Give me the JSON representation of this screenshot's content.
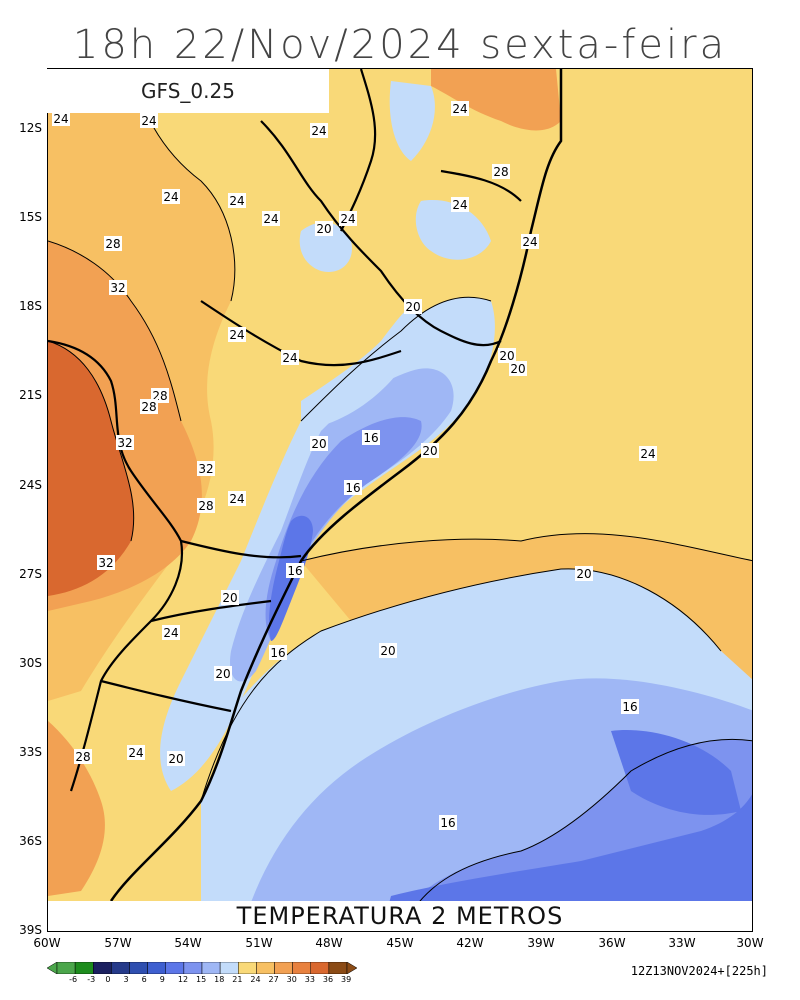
{
  "title": "18h 22/Nov/2024 sexta-feira",
  "model": "GFS_0.25",
  "caption": "TEMPERATURA 2 METROS",
  "run_info": "12Z13NOV2024+[225h]",
  "lat_labels": [
    "12S",
    "15S",
    "18S",
    "21S",
    "24S",
    "27S",
    "30S",
    "33S",
    "36S",
    "39S"
  ],
  "lon_labels": [
    "60W",
    "57W",
    "54W",
    "51W",
    "48W",
    "45W",
    "42W",
    "39W",
    "36W",
    "33W",
    "30W"
  ],
  "legend": {
    "values": [
      "-6",
      "-3",
      "0",
      "3",
      "6",
      "9",
      "12",
      "15",
      "18",
      "21",
      "24",
      "27",
      "30",
      "33",
      "36",
      "39"
    ],
    "colors": [
      "#4ba64b",
      "#1d8c1d",
      "#1b2060",
      "#253a8a",
      "#2f4fb0",
      "#3e5fd0",
      "#5c76e8",
      "#7d93ef",
      "#9fb7f5",
      "#c3dcfa",
      "#f9d978",
      "#f7c063",
      "#f2a153",
      "#e8813f",
      "#d9682f",
      "#8b4b16"
    ]
  },
  "contour_labels": [
    {
      "text": "24"
    },
    {
      "text": "24"
    },
    {
      "text": "24"
    },
    {
      "text": "24"
    },
    {
      "text": "24"
    },
    {
      "text": "24"
    },
    {
      "text": "28"
    },
    {
      "text": "24"
    },
    {
      "text": "24"
    },
    {
      "text": "28"
    },
    {
      "text": "32"
    },
    {
      "text": "24"
    },
    {
      "text": "20"
    },
    {
      "text": "24"
    },
    {
      "text": "20"
    },
    {
      "text": "24"
    },
    {
      "text": "24"
    },
    {
      "text": "20"
    },
    {
      "text": "28"
    },
    {
      "text": "28"
    },
    {
      "text": "32"
    },
    {
      "text": "20"
    },
    {
      "text": "16"
    },
    {
      "text": "20"
    },
    {
      "text": "24"
    },
    {
      "text": "32"
    },
    {
      "text": "16"
    },
    {
      "text": "28"
    },
    {
      "text": "24"
    },
    {
      "text": "32"
    },
    {
      "text": "16"
    },
    {
      "text": "20"
    },
    {
      "text": "20"
    },
    {
      "text": "24"
    },
    {
      "text": "16"
    },
    {
      "text": "20"
    },
    {
      "text": "20"
    },
    {
      "text": "20"
    },
    {
      "text": "16"
    },
    {
      "text": "28"
    },
    {
      "text": "24"
    },
    {
      "text": "20"
    },
    {
      "text": "16"
    }
  ]
}
